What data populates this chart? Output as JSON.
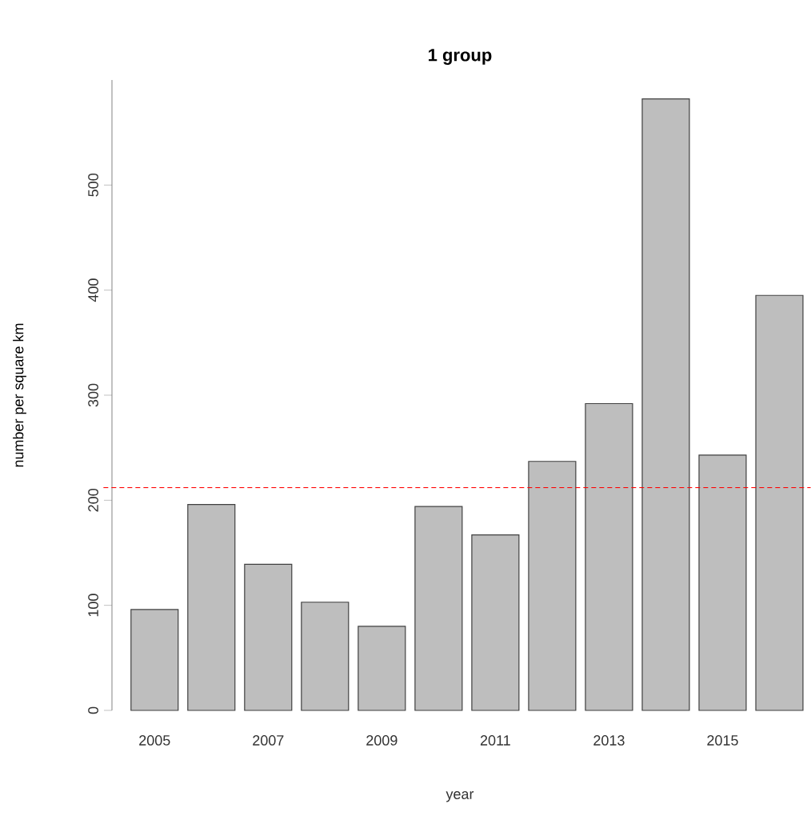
{
  "chart_data": {
    "type": "bar",
    "title": "1 group",
    "xlabel": "year",
    "ylabel": "number per square km",
    "categories": [
      "2005",
      null,
      "2007",
      null,
      "2009",
      null,
      "2011",
      null,
      "2013",
      null,
      "2015",
      null
    ],
    "values": [
      96,
      196,
      139,
      103,
      80,
      194,
      167,
      237,
      292,
      582,
      243,
      395
    ],
    "color": "#bebebe",
    "ylim": [
      0,
      600
    ],
    "yticks": [
      0,
      100,
      200,
      300,
      400,
      500
    ],
    "ref_lines": [
      {
        "axis": "y",
        "value": 212,
        "color": "#ff0000",
        "line_style": "dashed"
      }
    ]
  }
}
